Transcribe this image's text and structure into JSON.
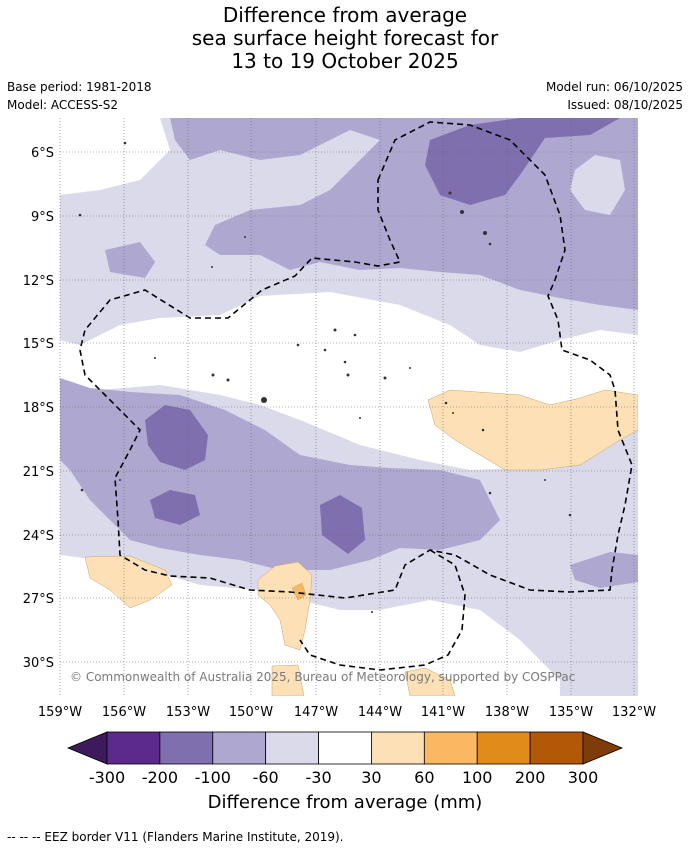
{
  "title": {
    "line1": "Difference from average",
    "line2": "sea surface height forecast for",
    "line3": "13 to 19 October 2025"
  },
  "meta": {
    "base_period": "Base period: 1981-2018",
    "model": "Model: ACCESS-S2",
    "model_run": "Model run: 06/10/2025",
    "issued": "Issued: 08/10/2025"
  },
  "map": {
    "lat_ticks": [
      "6°S",
      "9°S",
      "12°S",
      "15°S",
      "18°S",
      "21°S",
      "24°S",
      "27°S",
      "30°S"
    ],
    "lon_ticks": [
      "159°W",
      "156°W",
      "153°W",
      "150°W",
      "147°W",
      "144°W",
      "141°W",
      "138°W",
      "135°W",
      "132°W"
    ],
    "copyright": "© Commonwealth of Australia 2025, Bureau of Meteorology, supported by COSPPac"
  },
  "colorbar": {
    "title": "Difference from average (mm)",
    "levels": [
      "-300",
      "-200",
      "-100",
      "-60",
      "-30",
      "30",
      "60",
      "100",
      "200",
      "300"
    ],
    "colors": [
      "#3d1a5c",
      "#5b2a8c",
      "#7f6fae",
      "#aea8d1",
      "#dadaeb",
      "#ffffff",
      "#fde0b6",
      "#fbb761",
      "#e08b1a",
      "#b35806",
      "#7f3b08"
    ]
  },
  "footnote": "-- -- -- EEZ border V11 (Flanders Marine Institute, 2019)."
}
